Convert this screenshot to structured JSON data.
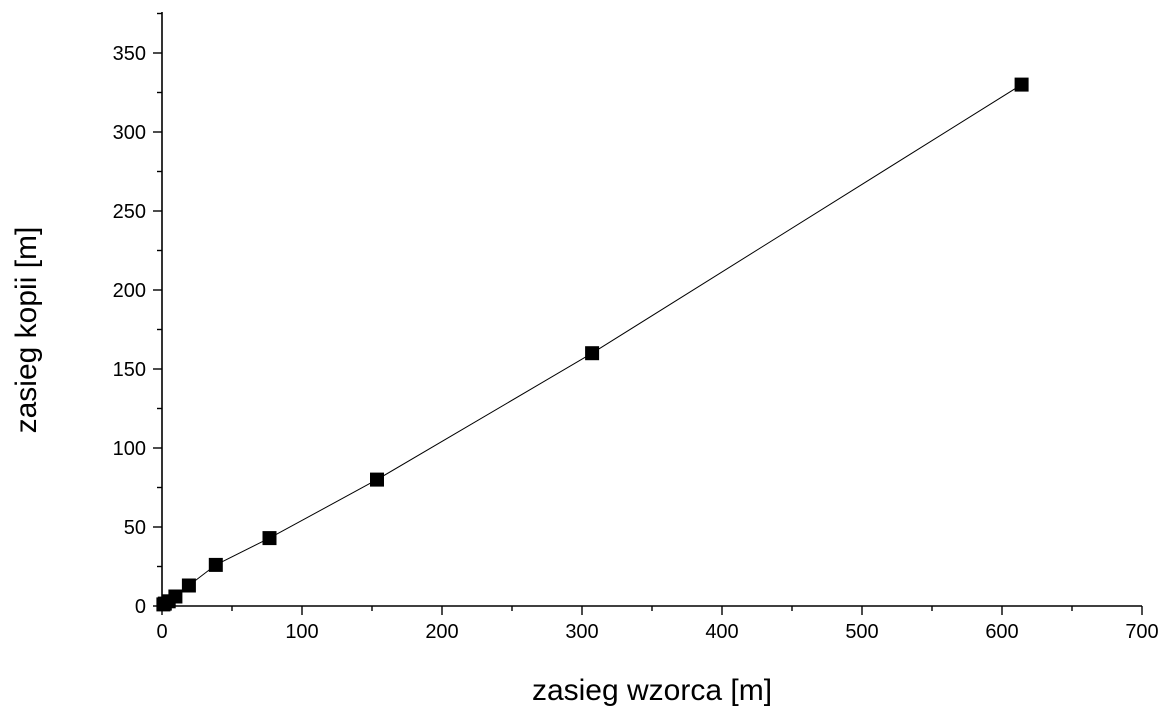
{
  "chart_data": {
    "type": "line",
    "xlabel": "zasieg wzorca [m]",
    "ylabel": "zasieg kopii [m]",
    "xlim": [
      0,
      700
    ],
    "ylim": [
      0,
      375
    ],
    "x_ticks": [
      0,
      100,
      200,
      300,
      400,
      500,
      600,
      700
    ],
    "y_ticks": [
      0,
      50,
      100,
      150,
      200,
      250,
      300,
      350
    ],
    "x_tick_labels": [
      "0",
      "100",
      "200",
      "300",
      "400",
      "500",
      "600",
      "700"
    ],
    "y_tick_labels": [
      "0",
      "50",
      "100",
      "150",
      "200",
      "250",
      "300",
      "350"
    ],
    "grid": false,
    "legend": "none",
    "series": [
      {
        "marker": "square",
        "color": "#000000",
        "x": [
          1,
          2,
          4.8,
          9.6,
          19.2,
          38.4,
          76.8,
          153.6,
          307.2,
          614
        ],
        "y": [
          1,
          1.5,
          3,
          6,
          13,
          26,
          43,
          80,
          160,
          330
        ]
      }
    ]
  }
}
